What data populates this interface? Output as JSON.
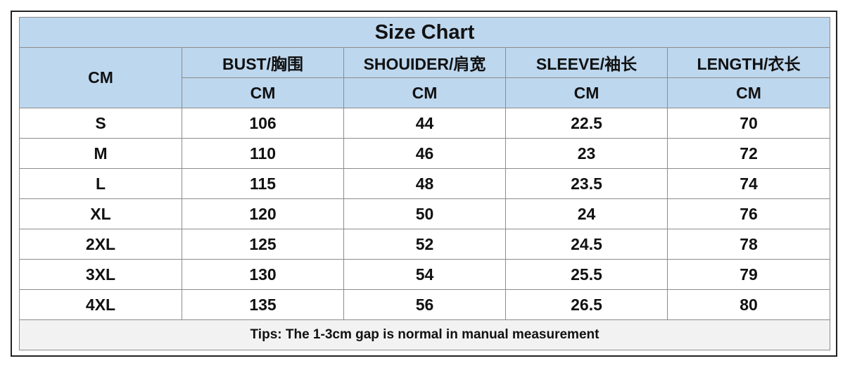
{
  "title": "Size Chart",
  "header": {
    "corner": "CM",
    "columns": [
      "BUST/胸围",
      "SHOUIDER/肩宽",
      "SLEEVE/袖长",
      "LENGTH/衣长"
    ],
    "units": [
      "CM",
      "CM",
      "CM",
      "CM"
    ]
  },
  "rows": [
    [
      "S",
      106,
      44,
      22.5,
      70
    ],
    [
      "M",
      110,
      46,
      23,
      72
    ],
    [
      "L",
      115,
      48,
      23.5,
      74
    ],
    [
      "XL",
      120,
      50,
      24,
      76
    ],
    [
      "2XL",
      125,
      52,
      24.5,
      78
    ],
    [
      "3XL",
      130,
      54,
      25.5,
      79
    ],
    [
      "4XL",
      135,
      56,
      26.5,
      80
    ]
  ],
  "tips": "Tips: The 1-3cm gap is normal in manual measurement"
}
